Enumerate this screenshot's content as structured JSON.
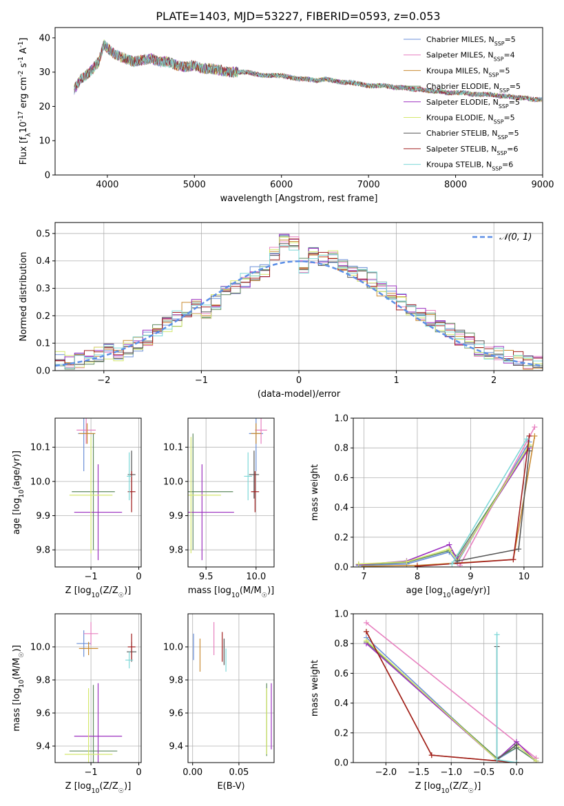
{
  "page_title": "PLATE=1403, MJD=53227, FIBERID=0593, z=0.053",
  "models": [
    {
      "name": "Chabrier MILES, N$_{SSP}$=5",
      "color": "#6a8fd8"
    },
    {
      "name": "Salpeter MILES, N$_{SSP}$=4",
      "color": "#e77fbf"
    },
    {
      "name": "Kroupa MILES, N$_{SSP}$=5",
      "color": "#c98a30"
    },
    {
      "name": "Chabrier ELODIE, N$_{SSP}$=5",
      "color": "#5e8a5e"
    },
    {
      "name": "Salpeter ELODIE, N$_{SSP}$=5",
      "color": "#9b2fbf"
    },
    {
      "name": "Kroupa ELODIE, N$_{SSP}$=5",
      "color": "#d4e86c"
    },
    {
      "name": "Chabrier STELIB, N$_{SSP}$=5",
      "color": "#555555"
    },
    {
      "name": "Salpeter STELIB, N$_{SSP}$=6",
      "color": "#a01c1c"
    },
    {
      "name": "Kroupa STELIB, N$_{SSP}$=6",
      "color": "#7ed8d8"
    }
  ],
  "chart_data": [
    {
      "id": "spectrum",
      "type": "line",
      "title": "PLATE=1403, MJD=53227, FIBERID=0593, z=0.053",
      "xlabel": "wavelength [Angstrom, rest frame]",
      "ylabel": "Flux [f$_\\lambda$10$^{-17}$ erg cm$^{-2}$ s$^{-1}$ A$^{-1}$]",
      "xlim": [
        3400,
        9000
      ],
      "ylim": [
        0,
        43
      ],
      "xticks": [
        4000,
        5000,
        6000,
        7000,
        8000,
        9000
      ],
      "yticks": [
        0,
        10,
        20,
        30,
        40
      ],
      "grid": false,
      "legend_position": "top-right",
      "x": [
        3620,
        3700,
        3800,
        3900,
        3960,
        4000,
        4100,
        4200,
        4300,
        4400,
        4500,
        4600,
        4700,
        4800,
        4900,
        5000,
        5100,
        5200,
        5300,
        5400,
        5500,
        5600,
        5700,
        5800,
        5900,
        6000,
        6100,
        6200,
        6300,
        6400,
        6500,
        6600,
        6700,
        6800,
        6900,
        7000,
        7100,
        7200,
        7300,
        7400,
        7500,
        7600,
        7700,
        7800,
        7900,
        8000,
        8100,
        8200,
        8300,
        8400,
        8500,
        8600,
        8700,
        8800,
        8900,
        8990
      ],
      "y": [
        25,
        28,
        30,
        33,
        38,
        37,
        35,
        34,
        33,
        33.5,
        34,
        33,
        33,
        32,
        31.5,
        32,
        31,
        31,
        30.5,
        30,
        30,
        30,
        29.5,
        29,
        29,
        29,
        28.5,
        28,
        28,
        27.5,
        28,
        27.5,
        27,
        27,
        26.5,
        26,
        26,
        26,
        25.5,
        25.5,
        25,
        25,
        24.5,
        24.5,
        24,
        24,
        24,
        23.5,
        23.5,
        23.5,
        23,
        23,
        22.5,
        22.5,
        22,
        22
      ]
    },
    {
      "id": "residuals",
      "type": "line",
      "xlabel": "(data-model)/error",
      "ylabel": "Normed distribution",
      "xlim": [
        -2.5,
        2.5
      ],
      "ylim": [
        0,
        0.54
      ],
      "xticks": [
        -2,
        -1,
        0,
        1,
        2
      ],
      "yticks": [
        0.0,
        0.1,
        0.2,
        0.3,
        0.4,
        0.5
      ],
      "grid": true,
      "legend_position": "top-right",
      "gaussian_label": "$\\mathcal{N}(0, 1)$",
      "bin_edges": [
        -2.5,
        -2.4,
        -2.3,
        -2.2,
        -2.1,
        -2.0,
        -1.9,
        -1.8,
        -1.7,
        -1.6,
        -1.5,
        -1.4,
        -1.3,
        -1.2,
        -1.1,
        -1.0,
        -0.9,
        -0.8,
        -0.7,
        -0.6,
        -0.5,
        -0.4,
        -0.3,
        -0.2,
        -0.1,
        0.0,
        0.1,
        0.2,
        0.3,
        0.4,
        0.5,
        0.6,
        0.7,
        0.8,
        0.9,
        1.0,
        1.1,
        1.2,
        1.3,
        1.4,
        1.5,
        1.6,
        1.7,
        1.8,
        1.9,
        2.0,
        2.1,
        2.2,
        2.3,
        2.4,
        2.5
      ],
      "hist": [
        0.04,
        0.035,
        0.04,
        0.05,
        0.06,
        0.07,
        0.065,
        0.08,
        0.1,
        0.12,
        0.15,
        0.17,
        0.19,
        0.22,
        0.23,
        0.22,
        0.25,
        0.28,
        0.3,
        0.33,
        0.35,
        0.36,
        0.42,
        0.48,
        0.46,
        0.38,
        0.42,
        0.41,
        0.42,
        0.38,
        0.37,
        0.35,
        0.33,
        0.3,
        0.28,
        0.25,
        0.23,
        0.2,
        0.19,
        0.17,
        0.15,
        0.12,
        0.11,
        0.08,
        0.07,
        0.06,
        0.05,
        0.04,
        0.035,
        0.03
      ]
    },
    {
      "id": "age-vs-Z",
      "type": "scatter",
      "xlabel": "Z [log$_{10}$(Z/Z$_\\odot$)]",
      "ylabel": "age  [log$_{10}$(age/yr)]",
      "xlim": [
        -1.75,
        0.05
      ],
      "ylim": [
        9.75,
        10.185
      ],
      "xticks": [
        -1,
        0
      ],
      "yticks": [
        9.8,
        9.9,
        10.0,
        10.1
      ],
      "points": [
        {
          "model": 0,
          "x": -1.15,
          "y": 10.14,
          "xerr": 0.12,
          "yerr": 0.11
        },
        {
          "model": 1,
          "x": -1.1,
          "y": 10.15,
          "xerr": 0.2,
          "yerr": 0.04
        },
        {
          "model": 2,
          "x": -1.08,
          "y": 10.14,
          "xerr": 0.17,
          "yerr": 0.03
        },
        {
          "model": 3,
          "x": -0.95,
          "y": 9.97,
          "xerr": 0.45,
          "yerr": 0.17
        },
        {
          "model": 4,
          "x": -0.85,
          "y": 9.91,
          "xerr": 0.5,
          "yerr": 0.14
        },
        {
          "model": 5,
          "x": -1.0,
          "y": 9.96,
          "xerr": 0.45,
          "yerr": 0.17
        },
        {
          "model": 6,
          "x": -0.15,
          "y": 10.02,
          "xerr": 0.08,
          "yerr": 0.07
        },
        {
          "model": 7,
          "x": -0.15,
          "y": 9.97,
          "xerr": 0.08,
          "yerr": 0.06
        },
        {
          "model": 8,
          "x": -0.2,
          "y": 10.015,
          "xerr": 0.05,
          "yerr": 0.07
        }
      ]
    },
    {
      "id": "age-vs-mass",
      "type": "scatter",
      "xlabel": "mass [log$_{10}$(M/M$_\\odot$)]",
      "ylabel": "",
      "xlim": [
        9.32,
        10.18
      ],
      "ylim": [
        9.75,
        10.185
      ],
      "xticks": [
        9.5,
        10.0
      ],
      "yticks": [
        9.8,
        9.9,
        10.0,
        10.1
      ],
      "points": [
        {
          "model": 0,
          "x": 10.0,
          "y": 10.14,
          "xerr": 0.07,
          "yerr": 0.11
        },
        {
          "model": 1,
          "x": 10.05,
          "y": 10.15,
          "xerr": 0.06,
          "yerr": 0.04
        },
        {
          "model": 2,
          "x": 10.0,
          "y": 10.14,
          "xerr": 0.05,
          "yerr": 0.03
        },
        {
          "model": 3,
          "x": 9.37,
          "y": 9.97,
          "xerr": 0.4,
          "yerr": 0.17
        },
        {
          "model": 4,
          "x": 9.46,
          "y": 9.91,
          "xerr": 0.32,
          "yerr": 0.14
        },
        {
          "model": 5,
          "x": 9.35,
          "y": 9.96,
          "xerr": 0.3,
          "yerr": 0.17
        },
        {
          "model": 6,
          "x": 9.98,
          "y": 10.02,
          "xerr": 0.05,
          "yerr": 0.07
        },
        {
          "model": 7,
          "x": 9.99,
          "y": 9.97,
          "xerr": 0.04,
          "yerr": 0.06
        },
        {
          "model": 8,
          "x": 9.92,
          "y": 10.015,
          "xerr": 0.04,
          "yerr": 0.07
        }
      ]
    },
    {
      "id": "mass-weight-vs-age",
      "type": "line",
      "xlabel": "age  [log$_{10}$(age/yr)]",
      "ylabel": "mass weight",
      "xlim": [
        6.8,
        10.35
      ],
      "ylim": [
        0,
        1.0
      ],
      "xticks": [
        7,
        8,
        9,
        10
      ],
      "yticks": [
        0.0,
        0.2,
        0.4,
        0.6,
        0.8,
        1.0
      ],
      "grid": true,
      "series": [
        {
          "model": 0,
          "x": [
            6.9,
            7.8,
            8.6,
            8.75,
            10.1
          ],
          "y": [
            0.01,
            0.02,
            0.1,
            0.03,
            0.84
          ]
        },
        {
          "model": 1,
          "x": [
            8.8,
            10.2
          ],
          "y": [
            0.01,
            0.94
          ]
        },
        {
          "model": 2,
          "x": [
            7.0,
            8.0,
            9.8,
            10.2
          ],
          "y": [
            0.005,
            0.01,
            0.05,
            0.88
          ]
        },
        {
          "model": 3,
          "x": [
            6.9,
            7.8,
            8.6,
            8.75,
            10.1
          ],
          "y": [
            0.015,
            0.03,
            0.11,
            0.07,
            0.81
          ]
        },
        {
          "model": 4,
          "x": [
            6.9,
            7.8,
            8.6,
            8.75,
            10.1
          ],
          "y": [
            0.015,
            0.04,
            0.15,
            0.05,
            0.8
          ]
        },
        {
          "model": 5,
          "x": [
            6.9,
            7.8,
            8.6,
            8.75,
            10.1
          ],
          "y": [
            0.02,
            0.035,
            0.12,
            0.04,
            0.82
          ]
        },
        {
          "model": 6,
          "x": [
            8.75,
            9.9,
            10.1
          ],
          "y": [
            0.04,
            0.12,
            0.78
          ]
        },
        {
          "model": 7,
          "x": [
            8.0,
            9.8,
            10.1
          ],
          "y": [
            0.005,
            0.05,
            0.88
          ]
        },
        {
          "model": 8,
          "x": [
            8.65,
            10.05
          ],
          "y": [
            0.02,
            0.86
          ]
        }
      ]
    },
    {
      "id": "mass-vs-Z",
      "type": "scatter",
      "xlabel": "Z [log$_{10}$(Z/Z$_\\odot$)]",
      "ylabel": "mass [log$_{10}$(M/M$_\\odot$)]",
      "xlim": [
        -1.75,
        0.05
      ],
      "ylim": [
        9.3,
        10.2
      ],
      "xticks": [
        -1,
        0
      ],
      "yticks": [
        9.4,
        9.6,
        9.8,
        10.0
      ],
      "points": [
        {
          "model": 0,
          "x": -1.15,
          "y": 10.02,
          "xerr": 0.15,
          "yerr": 0.08
        },
        {
          "model": 1,
          "x": -1.0,
          "y": 10.08,
          "xerr": 0.15,
          "yerr": 0.07
        },
        {
          "model": 2,
          "x": -1.05,
          "y": 9.99,
          "xerr": 0.2,
          "yerr": 0.04
        },
        {
          "model": 3,
          "x": -0.95,
          "y": 9.37,
          "xerr": 0.5,
          "yerr": 0.4
        },
        {
          "model": 4,
          "x": -0.85,
          "y": 9.46,
          "xerr": 0.5,
          "yerr": 0.32
        },
        {
          "model": 5,
          "x": -1.05,
          "y": 9.35,
          "xerr": 0.5,
          "yerr": 0.4
        },
        {
          "model": 6,
          "x": -0.15,
          "y": 9.97,
          "xerr": 0.1,
          "yerr": 0.06
        },
        {
          "model": 7,
          "x": -0.15,
          "y": 10.0,
          "xerr": 0.08,
          "yerr": 0.08
        },
        {
          "model": 8,
          "x": -0.2,
          "y": 9.92,
          "xerr": 0.08,
          "yerr": 0.05
        }
      ]
    },
    {
      "id": "mass-vs-EBV",
      "type": "scatter",
      "xlabel": "E(B-V)",
      "ylabel": "",
      "xlim": [
        -0.005,
        0.088
      ],
      "ylim": [
        9.3,
        10.2
      ],
      "xticks": [
        0.0,
        0.05
      ],
      "yticks": [
        9.4,
        9.6,
        9.8,
        10.0
      ],
      "points": [
        {
          "model": 0,
          "x": 0.001,
          "y": 10.0,
          "xerr": 0.0,
          "yerr": 0.08
        },
        {
          "model": 1,
          "x": 0.023,
          "y": 10.05,
          "xerr": 0.0,
          "yerr": 0.1
        },
        {
          "model": 2,
          "x": 0.008,
          "y": 9.95,
          "xerr": 0.0,
          "yerr": 0.1
        },
        {
          "model": 3,
          "x": 0.08,
          "y": 9.56,
          "xerr": 0.0,
          "yerr": 0.22
        },
        {
          "model": 4,
          "x": 0.085,
          "y": 9.58,
          "xerr": 0.0,
          "yerr": 0.2
        },
        {
          "model": 5,
          "x": 0.08,
          "y": 9.55,
          "xerr": 0.0,
          "yerr": 0.2
        },
        {
          "model": 6,
          "x": 0.034,
          "y": 9.97,
          "xerr": 0.0,
          "yerr": 0.08
        },
        {
          "model": 7,
          "x": 0.032,
          "y": 10.0,
          "xerr": 0.0,
          "yerr": 0.09
        },
        {
          "model": 8,
          "x": 0.036,
          "y": 9.92,
          "xerr": 0.0,
          "yerr": 0.07
        }
      ]
    },
    {
      "id": "mass-weight-vs-Z",
      "type": "line",
      "xlabel": "Z [log$_{10}$(Z/Z$_\\odot$)]",
      "ylabel": "mass weight",
      "xlim": [
        -2.5,
        0.4
      ],
      "ylim": [
        0,
        1.0
      ],
      "xticks": [
        -2.0,
        -1.5,
        -1.0,
        -0.5,
        0.0
      ],
      "yticks": [
        0.0,
        0.2,
        0.4,
        0.6,
        0.8,
        1.0
      ],
      "grid": true,
      "series": [
        {
          "model": 0,
          "x": [
            -2.3,
            -0.3,
            0.0,
            0.3
          ],
          "y": [
            0.84,
            0.02,
            0.1,
            0.01
          ]
        },
        {
          "model": 1,
          "x": [
            -2.3,
            0.3
          ],
          "y": [
            0.94,
            0.03
          ]
        },
        {
          "model": 2,
          "x": [
            -2.3,
            -1.3,
            0.0
          ],
          "y": [
            0.88,
            0.05,
            0.0
          ]
        },
        {
          "model": 3,
          "x": [
            -2.3,
            -0.3,
            0.0,
            0.3
          ],
          "y": [
            0.81,
            0.03,
            0.1,
            0.01
          ]
        },
        {
          "model": 4,
          "x": [
            -2.3,
            -0.3,
            0.0,
            0.3
          ],
          "y": [
            0.8,
            0.02,
            0.14,
            0.01
          ]
        },
        {
          "model": 5,
          "x": [
            -2.3,
            -0.3,
            0.0,
            0.3
          ],
          "y": [
            0.82,
            0.02,
            0.12,
            0.01
          ]
        },
        {
          "model": 6,
          "x": [
            -0.3,
            -0.3,
            0.0,
            0.0
          ],
          "y": [
            0.78,
            0.02,
            0.12,
            0.0
          ]
        },
        {
          "model": 7,
          "x": [
            -2.3,
            -1.3,
            0.0
          ],
          "y": [
            0.88,
            0.05,
            0.0
          ]
        },
        {
          "model": 8,
          "x": [
            -0.3,
            -0.3,
            0.0
          ],
          "y": [
            0.86,
            0.02,
            0.0
          ]
        }
      ]
    }
  ]
}
